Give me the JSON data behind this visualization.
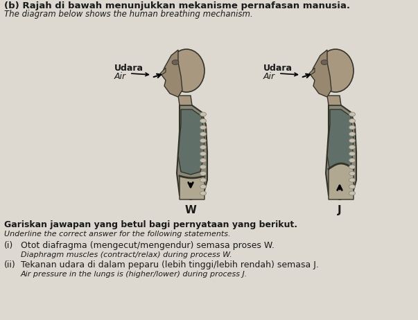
{
  "bg_color": "#ddd9d0",
  "title_bold": "(b) Rajah di bawah menunjukkan mekanisme pernafasan manusia.",
  "title_italic": "The diagram below shows the human breathing mechanism.",
  "label_W": "W",
  "label_J": "J",
  "udara_label": "Udara",
  "air_label": "Air",
  "gariskan_bold": "Gariskan jawapan yang betul bagi pernyataan yang berikut.",
  "gariskan_italic": "Underline the correct answer for the following statements.",
  "q1_roman": "(i)",
  "q1_malay": "Otot diafragma (mengecut/mengendur) semasa proses W.",
  "q1_english": "Diaphragm muscles (contract/relax) during process W.",
  "q2_roman": "(ii)",
  "q2_malay": "Tekanan udara di dalam peparu (lebih tinggi/lebih rendah) semasa J.",
  "q2_english": "Air pressure in the lungs is (higher/lower) during process J.",
  "figure_width": 6.03,
  "figure_height": 4.62,
  "dpi": 100,
  "head_color": "#a89888",
  "torso_color": "#888880",
  "lung_color": "#5a6a60",
  "abdomen_color": "#b0a898",
  "spine_color": "#c0b8a8",
  "diaphragm_color": "#3a3a2a",
  "text_color": "#1a1a1a"
}
